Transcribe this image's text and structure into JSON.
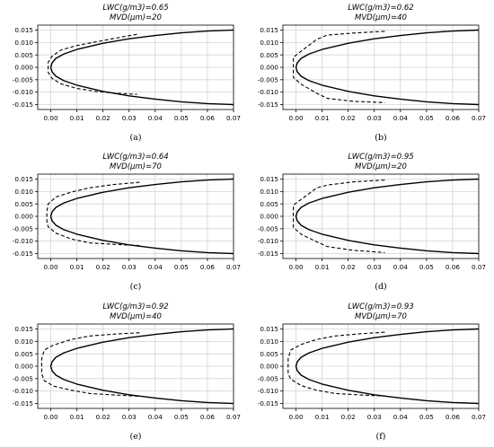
{
  "figure": {
    "panels": [
      {
        "title_line1": "LWC(g/m3)=0.65",
        "title_line2": "MVD(μm)=20",
        "label": "(a)"
      },
      {
        "title_line1": "LWC(g/m3)=0.62",
        "title_line2": "MVD(μm)=40",
        "label": "(b)"
      },
      {
        "title_line1": "LWC(g/m3)=0.64",
        "title_line2": "MVD(μm)=70",
        "label": "(c)"
      },
      {
        "title_line1": "LWC(g/m3)=0.95",
        "title_line2": "MVD(μm)=20",
        "label": "(d)"
      },
      {
        "title_line1": "LWC(g/m3)=0.92",
        "title_line2": "MVD(μm)=40",
        "label": "(e)"
      },
      {
        "title_line1": "LWC(g/m3)=0.93",
        "title_line2": "MVD(μm)=70",
        "label": "(f)"
      }
    ]
  },
  "chart_data": [
    {
      "type": "line",
      "title": "LWC(g/m3)=0.65 MVD(μm)=20",
      "xlim": [
        -0.005,
        0.07
      ],
      "ylim": [
        -0.017,
        0.017
      ],
      "xticks": [
        "0.00",
        "0.01",
        "0.02",
        "0.03",
        "0.04",
        "0.05",
        "0.06",
        "0.07"
      ],
      "yticks": [
        "0.015",
        "0.010",
        "0.005",
        "0.000",
        "-0.005",
        "-0.010",
        "-0.015"
      ],
      "grid": true,
      "series": [
        {
          "style": "solid",
          "x": [
            0.07,
            0.06,
            0.05,
            0.04,
            0.03,
            0.02,
            0.01,
            0.005,
            0.002,
            0.0005,
            0,
            0.0005,
            0.002,
            0.005,
            0.01,
            0.02,
            0.03,
            0.04,
            0.05,
            0.06,
            0.07
          ],
          "y": [
            0.015,
            0.0146,
            0.0139,
            0.0128,
            0.0115,
            0.0097,
            0.0072,
            0.0054,
            0.0036,
            0.0018,
            0,
            -0.0018,
            -0.0036,
            -0.0054,
            -0.0072,
            -0.0097,
            -0.0115,
            -0.0128,
            -0.0139,
            -0.0146,
            -0.015
          ]
        },
        {
          "style": "dashed",
          "x": [
            0.033,
            0.025,
            0.017,
            0.01,
            0.004,
            0.0005,
            -0.001,
            -0.001,
            -0.001,
            0.0005,
            0.004,
            0.01,
            0.017,
            0.025,
            0.033
          ],
          "y": [
            0.0133,
            0.0118,
            0.0102,
            0.0088,
            0.007,
            0.0045,
            0.002,
            0,
            -0.002,
            -0.0045,
            -0.0067,
            -0.0085,
            -0.0097,
            -0.0104,
            -0.0109
          ]
        }
      ]
    },
    {
      "type": "line",
      "title": "LWC(g/m3)=0.62 MVD(μm)=40",
      "xlim": [
        -0.005,
        0.07
      ],
      "ylim": [
        -0.017,
        0.017
      ],
      "xticks": [
        "0.00",
        "0.01",
        "0.02",
        "0.03",
        "0.04",
        "0.05",
        "0.06",
        "0.07"
      ],
      "yticks": [
        "0.015",
        "0.010",
        "0.005",
        "0.000",
        "-0.005",
        "-0.010",
        "-0.015"
      ],
      "grid": true,
      "series": [
        {
          "style": "solid",
          "x": [
            0.07,
            0.06,
            0.05,
            0.04,
            0.03,
            0.02,
            0.01,
            0.005,
            0.002,
            0.0005,
            0,
            0.0005,
            0.002,
            0.005,
            0.01,
            0.02,
            0.03,
            0.04,
            0.05,
            0.06,
            0.07
          ],
          "y": [
            0.015,
            0.0146,
            0.0139,
            0.0128,
            0.0115,
            0.0097,
            0.0072,
            0.0054,
            0.0036,
            0.0018,
            0,
            -0.0018,
            -0.0036,
            -0.0054,
            -0.0072,
            -0.0097,
            -0.0115,
            -0.0128,
            -0.0139,
            -0.0146,
            -0.015
          ]
        },
        {
          "style": "dashed",
          "x": [
            0.034,
            0.022,
            0.012,
            0.008,
            0.002,
            -0.001,
            -0.001,
            -0.001,
            0.002,
            0.008,
            0.012,
            0.022,
            0.034
          ],
          "y": [
            0.0145,
            0.0138,
            0.013,
            0.0113,
            0.0065,
            0.004,
            0,
            -0.004,
            -0.0068,
            -0.0105,
            -0.0125,
            -0.0137,
            -0.0142
          ]
        }
      ]
    },
    {
      "type": "line",
      "title": "LWC(g/m3)=0.64 MVD(μm)=70",
      "xlim": [
        -0.005,
        0.07
      ],
      "ylim": [
        -0.017,
        0.017
      ],
      "xticks": [
        "0.00",
        "0.01",
        "0.02",
        "0.03",
        "0.04",
        "0.05",
        "0.06",
        "0.07"
      ],
      "yticks": [
        "0.015",
        "0.010",
        "0.005",
        "0.000",
        "-0.005",
        "-0.010",
        "-0.015"
      ],
      "grid": true,
      "series": [
        {
          "style": "solid",
          "x": [
            0.07,
            0.06,
            0.05,
            0.04,
            0.03,
            0.02,
            0.01,
            0.005,
            0.002,
            0.0005,
            0,
            0.0005,
            0.002,
            0.005,
            0.01,
            0.02,
            0.03,
            0.04,
            0.05,
            0.06,
            0.07
          ],
          "y": [
            0.015,
            0.0146,
            0.0139,
            0.0128,
            0.0115,
            0.0097,
            0.0072,
            0.0054,
            0.0036,
            0.0018,
            0,
            -0.0018,
            -0.0036,
            -0.0054,
            -0.0072,
            -0.0097,
            -0.0115,
            -0.0128,
            -0.0139,
            -0.0146,
            -0.015
          ]
        },
        {
          "style": "dashed",
          "x": [
            0.034,
            0.024,
            0.015,
            0.008,
            0.002,
            -0.001,
            -0.0015,
            -0.0015,
            -0.001,
            0.002,
            0.008,
            0.015,
            0.024,
            0.034
          ],
          "y": [
            0.0137,
            0.0128,
            0.0115,
            0.0098,
            0.0078,
            0.005,
            0.002,
            -0.002,
            -0.0042,
            -0.0068,
            -0.0092,
            -0.0107,
            -0.0113,
            -0.0118
          ]
        }
      ]
    },
    {
      "type": "line",
      "title": "LWC(g/m3)=0.95 MVD(μm)=20",
      "xlim": [
        -0.005,
        0.07
      ],
      "ylim": [
        -0.017,
        0.017
      ],
      "xticks": [
        "0.00",
        "0.01",
        "0.02",
        "0.03",
        "0.04",
        "0.05",
        "0.06",
        "0.07"
      ],
      "yticks": [
        "0.015",
        "0.010",
        "0.005",
        "0.000",
        "-0.005",
        "-0.010",
        "-0.015"
      ],
      "grid": true,
      "series": [
        {
          "style": "solid",
          "x": [
            0.07,
            0.06,
            0.05,
            0.04,
            0.03,
            0.02,
            0.01,
            0.005,
            0.002,
            0.0005,
            0,
            0.0005,
            0.002,
            0.005,
            0.01,
            0.02,
            0.03,
            0.04,
            0.05,
            0.06,
            0.07
          ],
          "y": [
            0.015,
            0.0146,
            0.0139,
            0.0128,
            0.0115,
            0.0097,
            0.0072,
            0.0054,
            0.0036,
            0.0018,
            0,
            -0.0018,
            -0.0036,
            -0.0054,
            -0.0072,
            -0.0097,
            -0.0115,
            -0.0128,
            -0.0139,
            -0.0146,
            -0.015
          ]
        },
        {
          "style": "dashed",
          "x": [
            0.034,
            0.022,
            0.012,
            0.008,
            0.002,
            -0.001,
            -0.001,
            -0.001,
            0.002,
            0.008,
            0.012,
            0.022,
            0.034
          ],
          "y": [
            0.0146,
            0.0139,
            0.0126,
            0.0115,
            0.0068,
            0.0045,
            0,
            -0.0045,
            -0.0072,
            -0.0103,
            -0.0122,
            -0.0137,
            -0.0146
          ]
        }
      ]
    },
    {
      "type": "line",
      "title": "LWC(g/m3)=0.92 MVD(μm)=40",
      "xlim": [
        -0.005,
        0.07
      ],
      "ylim": [
        -0.017,
        0.017
      ],
      "xticks": [
        "0.00",
        "0.01",
        "0.02",
        "0.03",
        "0.04",
        "0.05",
        "0.06",
        "0.07"
      ],
      "yticks": [
        "0.015",
        "0.010",
        "0.005",
        "0.000",
        "-0.005",
        "-0.010",
        "-0.015"
      ],
      "grid": true,
      "series": [
        {
          "style": "solid",
          "x": [
            0.07,
            0.06,
            0.05,
            0.04,
            0.03,
            0.02,
            0.01,
            0.005,
            0.002,
            0.0005,
            0,
            0.0005,
            0.002,
            0.005,
            0.01,
            0.02,
            0.03,
            0.04,
            0.05,
            0.06,
            0.07
          ],
          "y": [
            0.015,
            0.0146,
            0.0139,
            0.0128,
            0.0115,
            0.0097,
            0.0072,
            0.0054,
            0.0036,
            0.0018,
            0,
            -0.0018,
            -0.0036,
            -0.0054,
            -0.0072,
            -0.0097,
            -0.0115,
            -0.0128,
            -0.0139,
            -0.0146,
            -0.015
          ]
        },
        {
          "style": "dashed",
          "x": [
            0.034,
            0.025,
            0.015,
            0.008,
            0.001,
            -0.0025,
            -0.0035,
            -0.0035,
            -0.0025,
            0.001,
            0.008,
            0.015,
            0.025,
            0.034
          ],
          "y": [
            0.0135,
            0.013,
            0.0122,
            0.0108,
            0.0085,
            0.0065,
            0.003,
            -0.003,
            -0.0058,
            -0.008,
            -0.0097,
            -0.011,
            -0.0116,
            -0.0121
          ]
        }
      ]
    },
    {
      "type": "line",
      "title": "LWC(g/m3)=0.93 MVD(μm)=70",
      "xlim": [
        -0.005,
        0.07
      ],
      "ylim": [
        -0.017,
        0.017
      ],
      "xticks": [
        "0.00",
        "0.01",
        "0.02",
        "0.03",
        "0.04",
        "0.05",
        "0.06",
        "0.07"
      ],
      "yticks": [
        "0.015",
        "0.010",
        "0.005",
        "0.000",
        "-0.005",
        "-0.010",
        "-0.015"
      ],
      "grid": true,
      "series": [
        {
          "style": "solid",
          "x": [
            0.07,
            0.06,
            0.05,
            0.04,
            0.03,
            0.02,
            0.01,
            0.005,
            0.002,
            0.0005,
            0,
            0.0005,
            0.002,
            0.005,
            0.01,
            0.02,
            0.03,
            0.04,
            0.05,
            0.06,
            0.07
          ],
          "y": [
            0.015,
            0.0146,
            0.0139,
            0.0128,
            0.0115,
            0.0097,
            0.0072,
            0.0054,
            0.0036,
            0.0018,
            0,
            -0.0018,
            -0.0036,
            -0.0054,
            -0.0072,
            -0.0097,
            -0.0115,
            -0.0128,
            -0.0139,
            -0.0146,
            -0.015
          ]
        },
        {
          "style": "dashed",
          "x": [
            0.034,
            0.025,
            0.015,
            0.008,
            0.002,
            -0.002,
            -0.003,
            -0.003,
            -0.002,
            0.002,
            0.008,
            0.015,
            0.025,
            0.034
          ],
          "y": [
            0.0137,
            0.0131,
            0.0122,
            0.0108,
            0.0088,
            0.0065,
            0.003,
            -0.003,
            -0.0052,
            -0.0078,
            -0.0097,
            -0.011,
            -0.0116,
            -0.012
          ]
        }
      ]
    }
  ]
}
